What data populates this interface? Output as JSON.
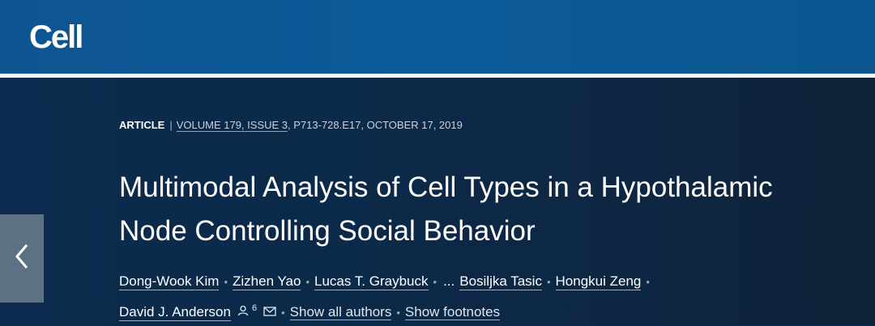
{
  "header": {
    "logo": "Cell"
  },
  "meta": {
    "type": "ARTICLE",
    "separator": "|",
    "volume_issue": "VOLUME 179, ISSUE 3",
    "pages_date": ", P713-728.E17, OCTOBER 17, 2019"
  },
  "title": {
    "line1": "Multimodal Analysis of Cell Types in a Hypothalamic",
    "line2": "Node Controlling Social Behavior"
  },
  "authors": {
    "list": [
      "Dong-Wook Kim",
      "Zizhen Yao",
      "Lucas T. Graybuck",
      "Bosiljka Tasic",
      "Hongkui Zeng",
      "David J. Anderson"
    ],
    "ellipsis": "...",
    "bullet": "•",
    "corresponding_count": "6",
    "show_all": "Show all authors",
    "show_footnotes": "Show footnotes"
  },
  "icons": {
    "prev": "chevron-left-icon",
    "person": "person-icon",
    "mail": "mail-icon"
  },
  "colors": {
    "topbar": "#0c5a98",
    "hero": "#0b2a4a",
    "prev_button": "#5e7184"
  }
}
